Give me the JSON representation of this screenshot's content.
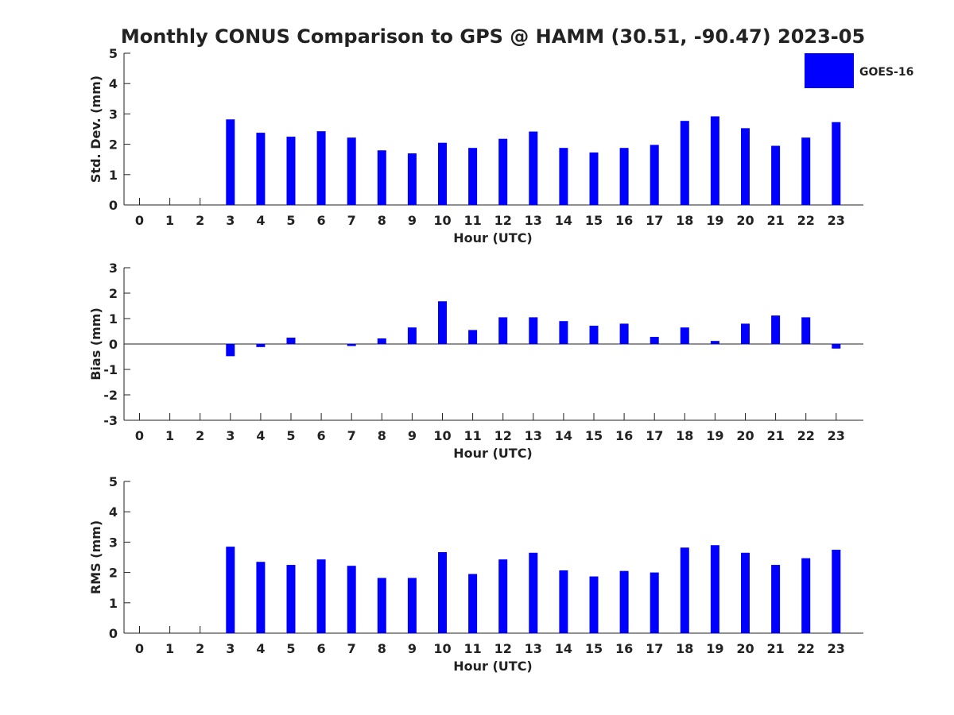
{
  "title": "Monthly CONUS Comparison to GPS @ HAMM (30.51, -90.47) 2023-05",
  "legend": {
    "label": "GOES-16",
    "color": "#0000ff",
    "placement": "top-right"
  },
  "chart_data": [
    {
      "type": "bar",
      "ylabel": "Std. Dev. (mm)",
      "xlabel": "Hour (UTC)",
      "ylim": [
        0,
        5
      ],
      "yticks": [
        "0",
        "1",
        "2",
        "3",
        "4",
        "5"
      ],
      "categories": [
        "0",
        "1",
        "2",
        "3",
        "4",
        "5",
        "6",
        "7",
        "8",
        "9",
        "10",
        "11",
        "12",
        "13",
        "14",
        "15",
        "16",
        "17",
        "18",
        "19",
        "20",
        "21",
        "22",
        "23"
      ],
      "series": [
        {
          "name": "GOES-16",
          "values": [
            null,
            null,
            null,
            2.82,
            2.38,
            2.25,
            2.43,
            2.22,
            1.8,
            1.7,
            2.05,
            1.88,
            2.18,
            2.42,
            1.88,
            1.73,
            1.88,
            1.98,
            2.77,
            2.92,
            2.53,
            1.95,
            2.22,
            2.73
          ]
        }
      ]
    },
    {
      "type": "bar",
      "ylabel": "Bias (mm)",
      "xlabel": "Hour (UTC)",
      "ylim": [
        -3,
        3
      ],
      "yticks": [
        "-3",
        "-2",
        "-1",
        "0",
        "1",
        "2",
        "3"
      ],
      "categories": [
        "0",
        "1",
        "2",
        "3",
        "4",
        "5",
        "6",
        "7",
        "8",
        "9",
        "10",
        "11",
        "12",
        "13",
        "14",
        "15",
        "16",
        "17",
        "18",
        "19",
        "20",
        "21",
        "22",
        "23"
      ],
      "series": [
        {
          "name": "GOES-16",
          "values": [
            null,
            null,
            null,
            -0.48,
            -0.12,
            0.25,
            0.0,
            -0.08,
            0.22,
            0.65,
            1.68,
            0.55,
            1.05,
            1.05,
            0.9,
            0.72,
            0.8,
            0.28,
            0.65,
            0.12,
            0.8,
            1.12,
            1.05,
            -0.18
          ]
        }
      ]
    },
    {
      "type": "bar",
      "ylabel": "RMS (mm)",
      "xlabel": "Hour (UTC)",
      "ylim": [
        0,
        5
      ],
      "yticks": [
        "0",
        "1",
        "2",
        "3",
        "4",
        "5"
      ],
      "categories": [
        "0",
        "1",
        "2",
        "3",
        "4",
        "5",
        "6",
        "7",
        "8",
        "9",
        "10",
        "11",
        "12",
        "13",
        "14",
        "15",
        "16",
        "17",
        "18",
        "19",
        "20",
        "21",
        "22",
        "23"
      ],
      "series": [
        {
          "name": "GOES-16",
          "values": [
            null,
            null,
            null,
            2.85,
            2.35,
            2.25,
            2.43,
            2.22,
            1.82,
            1.82,
            2.67,
            1.95,
            2.43,
            2.65,
            2.07,
            1.87,
            2.05,
            2.0,
            2.82,
            2.9,
            2.65,
            2.25,
            2.47,
            2.75
          ]
        }
      ]
    }
  ]
}
